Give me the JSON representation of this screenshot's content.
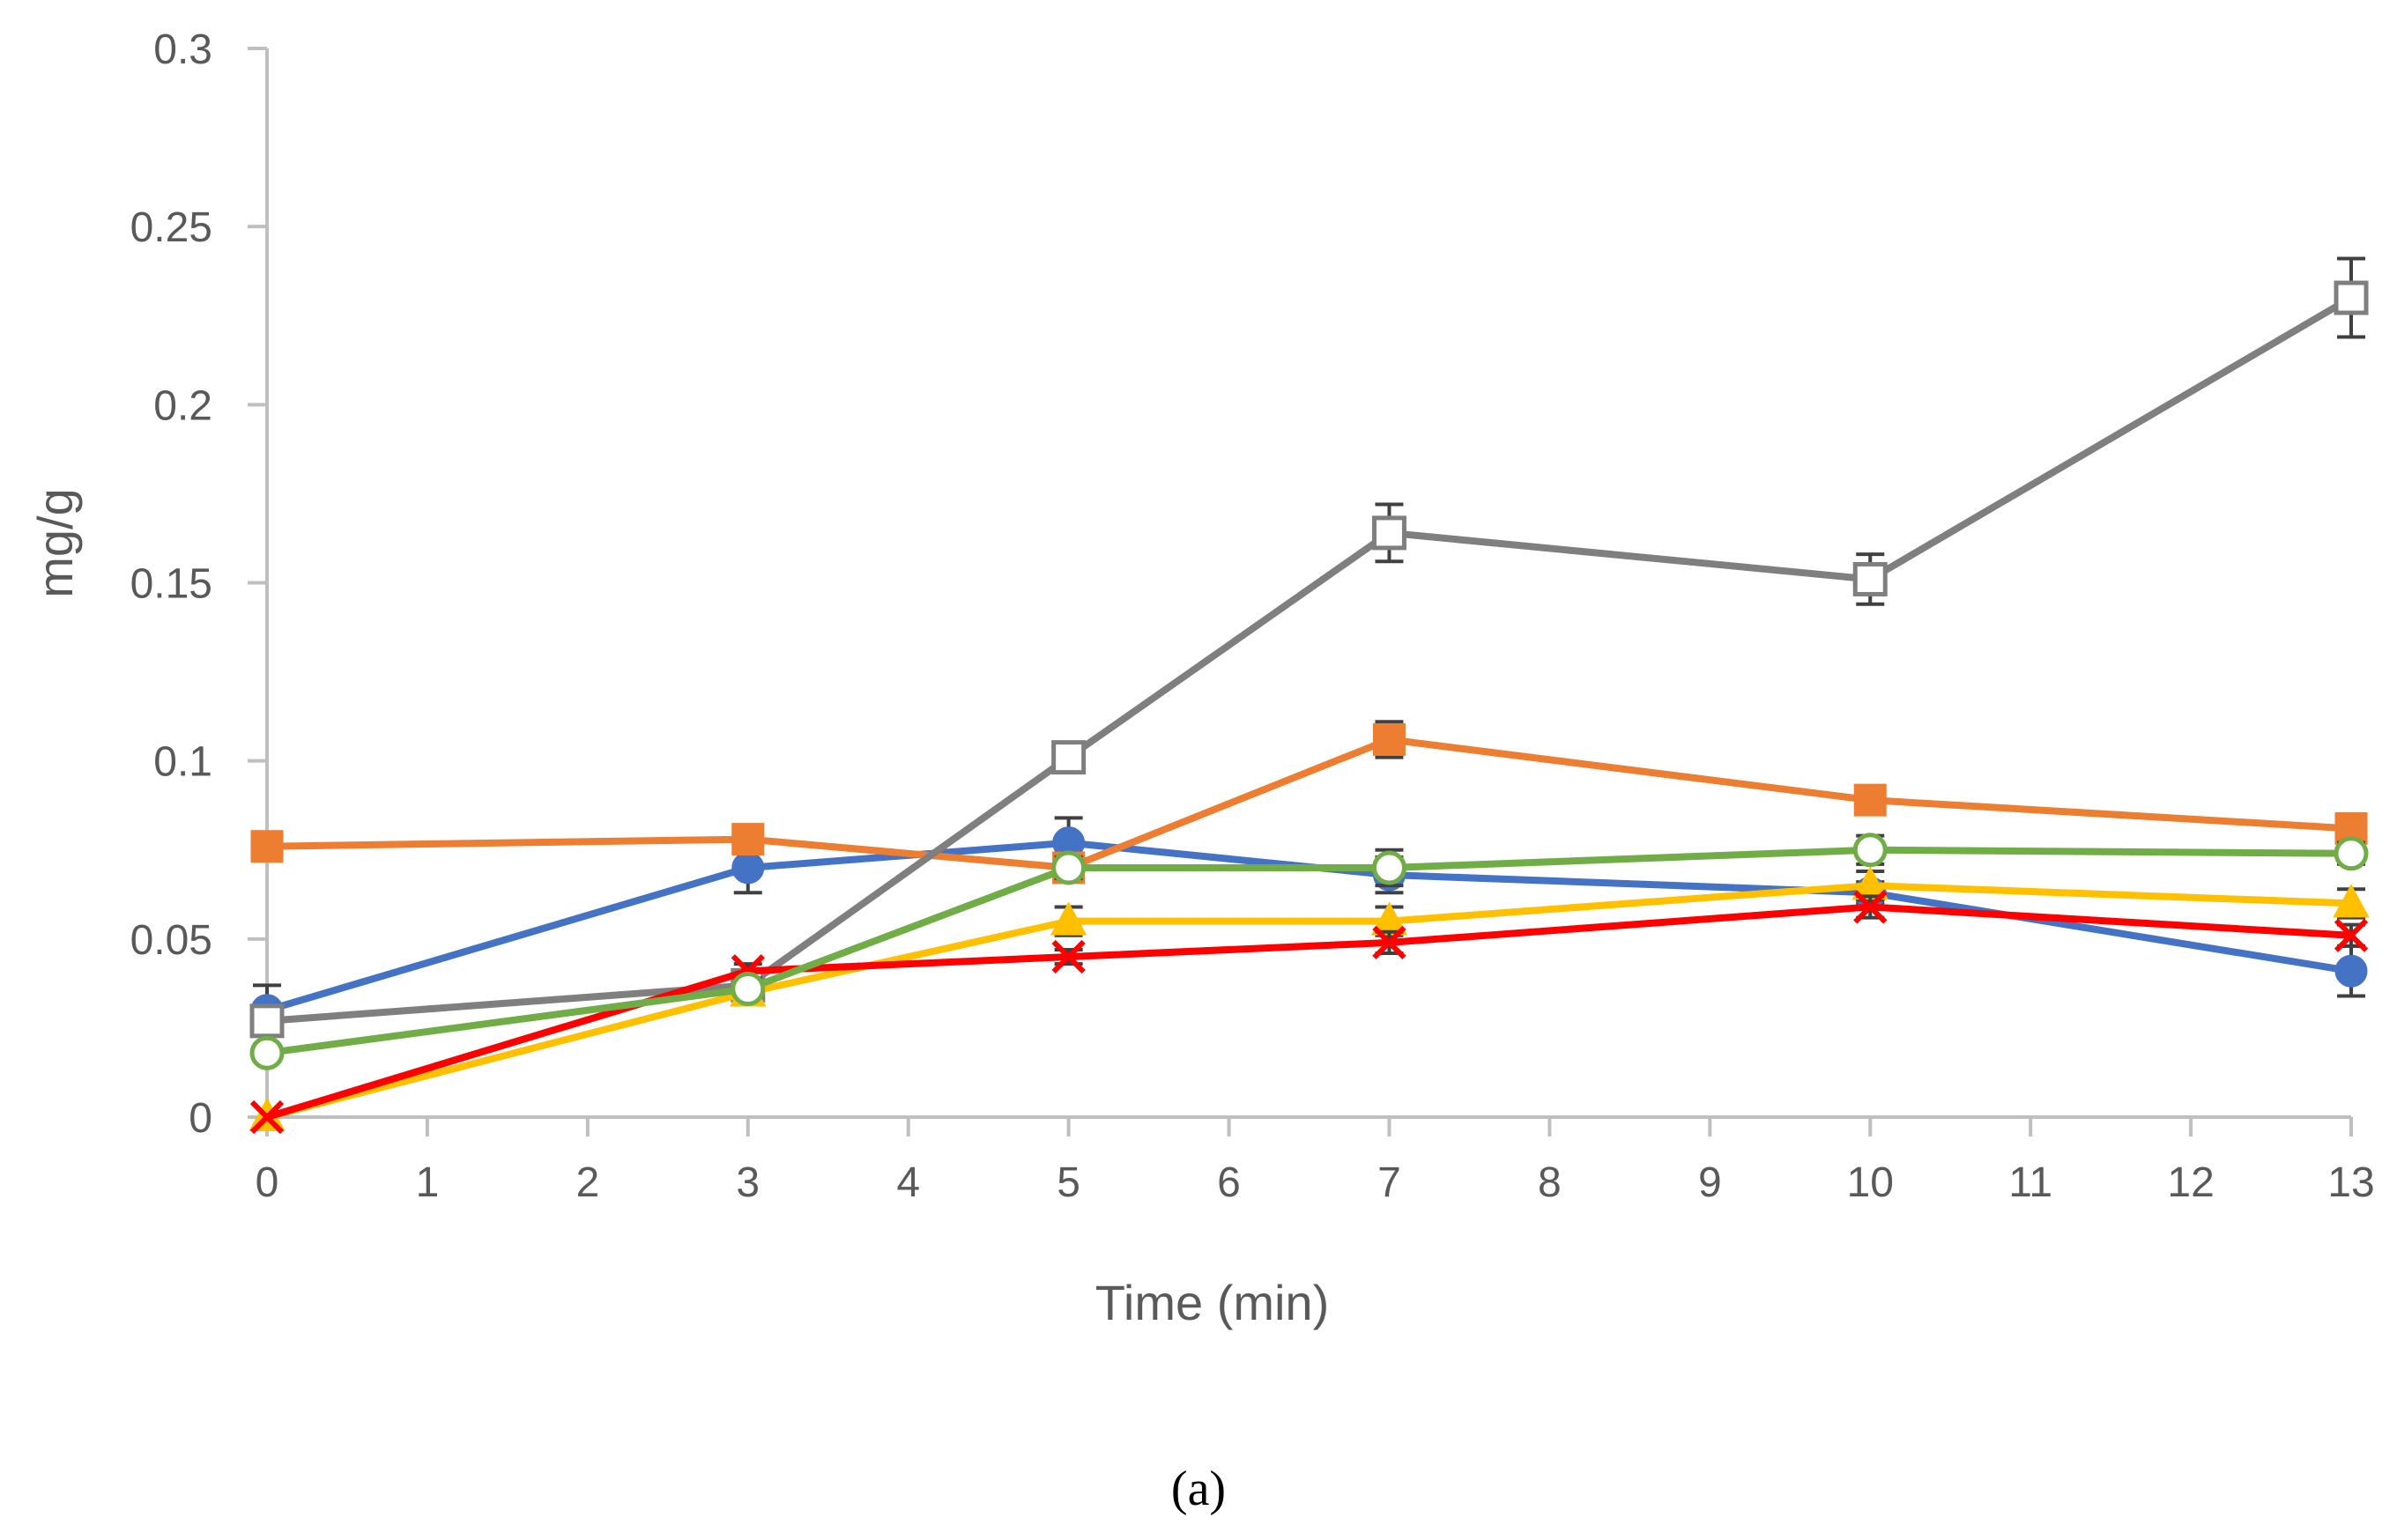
{
  "chart_data": {
    "type": "line",
    "title": "",
    "xlabel": "Time (min)",
    "ylabel": "mg/g",
    "panel_label": "(a)",
    "xlim": [
      0,
      13
    ],
    "ylim": [
      0,
      0.3
    ],
    "x_ticks": [
      "0",
      "1",
      "2",
      "3",
      "4",
      "5",
      "6",
      "7",
      "8",
      "9",
      "10",
      "11",
      "12",
      "13"
    ],
    "y_ticks": [
      "0",
      "0.05",
      "0.1",
      "0.15",
      "0.2",
      "0.25",
      "0.3"
    ],
    "grid": false,
    "legend": "none",
    "x": [
      0,
      3,
      5,
      7,
      10,
      13
    ],
    "series": [
      {
        "name": "blue",
        "color": "#4472C4",
        "marker": "circle-filled",
        "values": [
          0.03,
          0.07,
          0.077,
          0.068,
          0.063,
          0.041
        ],
        "errors": [
          0.007,
          0.007,
          0.007,
          0.005,
          0.003,
          0.007
        ]
      },
      {
        "name": "orange",
        "color": "#ED7D31",
        "marker": "square-filled",
        "values": [
          0.076,
          0.078,
          0.07,
          0.106,
          0.089,
          0.081
        ],
        "errors": [
          0.004,
          0.004,
          0.003,
          0.005,
          0.004,
          0.004
        ]
      },
      {
        "name": "gray",
        "color": "#7F7F7F",
        "marker": "square-open",
        "values": [
          0.027,
          0.037,
          0.101,
          0.164,
          0.151,
          0.23
        ],
        "errors": [
          0.004,
          0.003,
          0.004,
          0.008,
          0.007,
          0.011
        ]
      },
      {
        "name": "yellow",
        "color": "#FFC000",
        "marker": "triangle-filled",
        "values": [
          0.0,
          0.035,
          0.055,
          0.055,
          0.065,
          0.06
        ],
        "errors": [
          0.0,
          0.002,
          0.004,
          0.004,
          0.004,
          0.004
        ]
      },
      {
        "name": "red",
        "color": "#FF0000",
        "marker": "x",
        "values": [
          0.0,
          0.041,
          0.045,
          0.049,
          0.059,
          0.051
        ],
        "errors": [
          0.0,
          0.002,
          0.002,
          0.003,
          0.003,
          0.003
        ]
      },
      {
        "name": "green",
        "color": "#70AD47",
        "marker": "circle-open",
        "values": [
          0.018,
          0.036,
          0.07,
          0.07,
          0.075,
          0.074
        ],
        "errors": [
          0.002,
          0.002,
          0.003,
          0.005,
          0.004,
          0.003
        ]
      }
    ]
  }
}
